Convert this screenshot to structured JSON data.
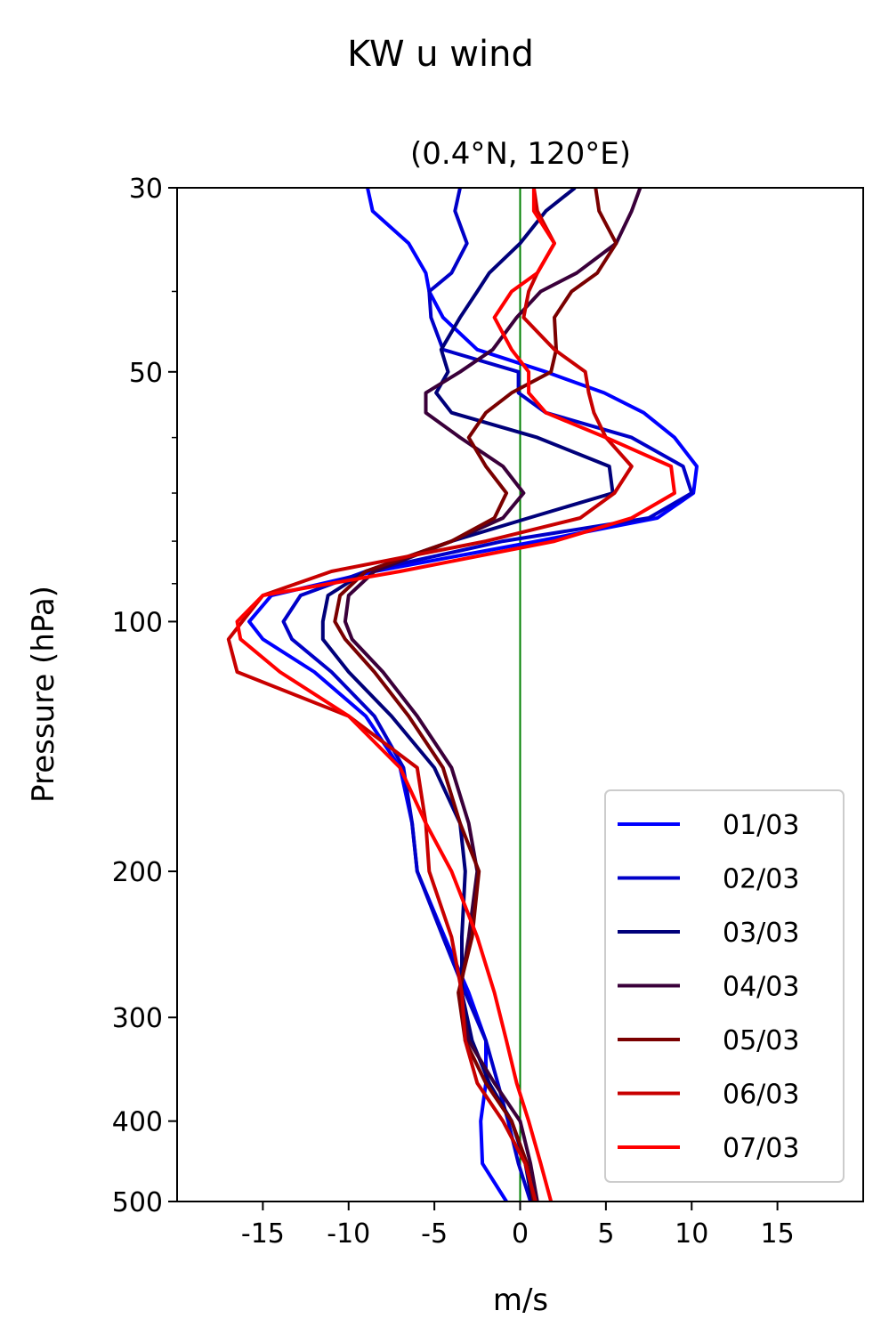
{
  "chart_data": {
    "type": "line",
    "title": "KW u wind",
    "subtitle": "(0.4°N, 120°E)",
    "xlabel": "m/s",
    "ylabel": "Pressure (hPa)",
    "xlim": [
      -20,
      20
    ],
    "ylim": [
      500,
      30
    ],
    "y_scale": "log",
    "x_ticks": [
      -15,
      -10,
      -5,
      0,
      5,
      10,
      15
    ],
    "x_tick_labels": [
      "-15",
      "-10",
      "-5",
      "0",
      "5",
      "10",
      "15"
    ],
    "y_ticks": [
      30,
      50,
      100,
      200,
      300,
      400,
      500
    ],
    "y_tick_labels": [
      "30",
      "50",
      "100",
      "200",
      "300",
      "400",
      "500"
    ],
    "y_minor_ticks": [
      40,
      60,
      70,
      80,
      90
    ],
    "reference_line": {
      "x": 0,
      "color": "#008000"
    },
    "legend_position": "lower-right",
    "grid": false,
    "pressure_levels": [
      30,
      32,
      35,
      38,
      40,
      43,
      47,
      50,
      53,
      56,
      60,
      65,
      70,
      75,
      80,
      87,
      93,
      100,
      105,
      115,
      130,
      150,
      175,
      200,
      240,
      280,
      320,
      360,
      400,
      450,
      500
    ],
    "series": [
      {
        "name": "01/03",
        "color": "#0000ff",
        "values": [
          -8.9,
          -8.6,
          -6.5,
          -5.5,
          -5.3,
          -4.5,
          -2.5,
          1.5,
          4.9,
          7.2,
          9.0,
          10.3,
          10.1,
          8.0,
          1.0,
          -8.5,
          -14.5,
          -15.8,
          -15.0,
          -12.0,
          -9.0,
          -7.0,
          -6.3,
          -6.0,
          -4.4,
          -3.0,
          -2.0,
          -2.0,
          -2.3,
          -2.2,
          -0.8
        ]
      },
      {
        "name": "02/03",
        "color": "#0000c8",
        "values": [
          -3.5,
          -3.8,
          -3.1,
          -4.0,
          -5.3,
          -5.2,
          -4.5,
          -0.1,
          -0.1,
          1.5,
          6.5,
          9.5,
          10.0,
          7.5,
          -1.0,
          -9.0,
          -12.8,
          -13.8,
          -13.3,
          -11.0,
          -8.5,
          -6.8,
          -6.3,
          -6.0,
          -4.5,
          -3.2,
          -2.0,
          -1.3,
          -0.7,
          -0.1,
          0.6
        ]
      },
      {
        "name": "03/03",
        "color": "#00007a",
        "values": [
          3.2,
          1.5,
          0.0,
          -1.8,
          -2.5,
          -3.5,
          -4.6,
          -4.2,
          -4.9,
          -4.0,
          1.0,
          5.2,
          5.4,
          0.5,
          -4.0,
          -9.0,
          -11.2,
          -11.5,
          -11.5,
          -10.0,
          -7.5,
          -5.0,
          -3.5,
          -3.2,
          -3.4,
          -3.4,
          -2.8,
          -1.8,
          -0.5,
          0.3,
          0.7
        ]
      },
      {
        "name": "04/03",
        "color": "#3a003a",
        "values": [
          7.0,
          6.5,
          5.6,
          3.3,
          1.2,
          -0.2,
          -1.6,
          -3.5,
          -5.5,
          -5.5,
          -3.5,
          -1.0,
          0.2,
          -1.0,
          -4.0,
          -8.5,
          -10.0,
          -10.2,
          -9.8,
          -8.0,
          -6.0,
          -4.0,
          -3.0,
          -2.5,
          -3.0,
          -3.5,
          -3.0,
          -1.5,
          0.0,
          0.6,
          1.0
        ]
      },
      {
        "name": "05/03",
        "color": "#7a0000",
        "values": [
          4.4,
          4.6,
          5.6,
          4.5,
          3.0,
          2.0,
          2.1,
          1.8,
          -0.5,
          -2.0,
          -3.0,
          -2.0,
          -0.8,
          -1.5,
          -4.0,
          -9.0,
          -10.5,
          -10.8,
          -10.2,
          -8.5,
          -6.5,
          -4.5,
          -3.5,
          -2.4,
          -2.8,
          -3.6,
          -3.2,
          -2.0,
          -0.5,
          0.4,
          0.8
        ]
      },
      {
        "name": "06/03",
        "color": "#c80000",
        "values": [
          0.8,
          1.0,
          2.0,
          1.0,
          0.5,
          0.2,
          2.0,
          3.8,
          4.0,
          4.3,
          5.0,
          6.5,
          5.5,
          3.5,
          -2.0,
          -11.0,
          -15.0,
          -16.2,
          -17.0,
          -16.5,
          -10.0,
          -6.0,
          -5.5,
          -5.3,
          -4.0,
          -3.4,
          -3.2,
          -2.5,
          -1.0,
          0.3,
          0.9
        ]
      },
      {
        "name": "07/03",
        "color": "#ff0000",
        "values": [
          0.8,
          0.8,
          2.0,
          1.0,
          -0.5,
          -1.5,
          -0.5,
          0.5,
          0.5,
          1.5,
          5.0,
          8.8,
          9.0,
          6.5,
          2.0,
          -7.0,
          -15.0,
          -16.5,
          -16.3,
          -14.0,
          -10.0,
          -7.0,
          -5.5,
          -4.0,
          -2.5,
          -1.5,
          -0.8,
          -0.2,
          0.5,
          1.2,
          1.8
        ]
      }
    ]
  }
}
